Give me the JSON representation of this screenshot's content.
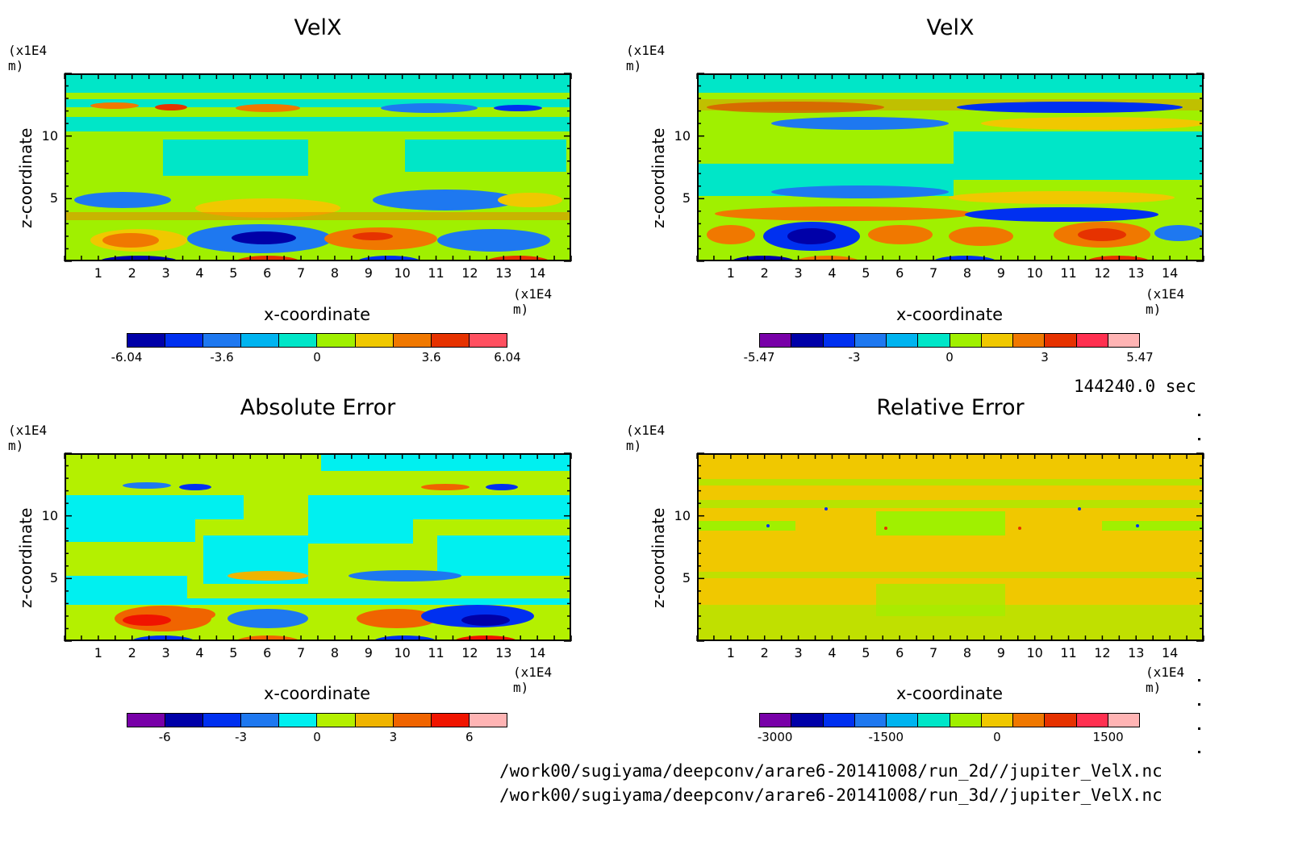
{
  "chart_data": [
    {
      "type": "heatmap",
      "title": "VelX",
      "xlabel": "x-coordinate",
      "ylabel": "z-coordinate",
      "x_unit": "(x1E4 m)",
      "y_unit": "(x1E4 m)",
      "xticks": [
        "1",
        "2",
        "3",
        "4",
        "5",
        "6",
        "7",
        "8",
        "9",
        "10",
        "11",
        "12",
        "13",
        "14"
      ],
      "yticks": [
        "5",
        "10"
      ],
      "xlim": [
        0,
        15
      ],
      "ylim": [
        0,
        15
      ],
      "colorbar": {
        "colors": [
          "#0000a8",
          "#0030f0",
          "#1e78f0",
          "#00b4f0",
          "#00e6c8",
          "#a0f000",
          "#f0c800",
          "#f07800",
          "#e63200",
          "#ff5060"
        ],
        "labels": [
          "-6.04",
          "-3.6",
          "0",
          "3.6",
          "6.04"
        ]
      }
    },
    {
      "type": "heatmap",
      "title": "VelX",
      "xlabel": "x-coordinate",
      "ylabel": "z-coordinate",
      "x_unit": "(x1E4 m)",
      "y_unit": "(x1E4 m)",
      "xticks": [
        "1",
        "2",
        "3",
        "4",
        "5",
        "6",
        "7",
        "8",
        "9",
        "10",
        "11",
        "12",
        "13",
        "14"
      ],
      "yticks": [
        "5",
        "10"
      ],
      "xlim": [
        0,
        15
      ],
      "ylim": [
        0,
        15
      ],
      "colorbar": {
        "colors": [
          "#7800a8",
          "#0000a8",
          "#0030f0",
          "#1e78f0",
          "#00b4f0",
          "#00e6c8",
          "#a0f000",
          "#f0c800",
          "#f07800",
          "#e63200",
          "#ff3050",
          "#ffb4b4"
        ],
        "labels": [
          "-5.47",
          "-3",
          "0",
          "3",
          "5.47"
        ]
      }
    },
    {
      "type": "heatmap",
      "title": "Absolute Error",
      "xlabel": "x-coordinate",
      "ylabel": "z-coordinate",
      "x_unit": "(x1E4 m)",
      "y_unit": "(x1E4 m)",
      "xticks": [
        "1",
        "2",
        "3",
        "4",
        "5",
        "6",
        "7",
        "8",
        "9",
        "10",
        "11",
        "12",
        "13",
        "14"
      ],
      "yticks": [
        "5",
        "10"
      ],
      "xlim": [
        0,
        15
      ],
      "ylim": [
        0,
        15
      ],
      "colorbar": {
        "colors": [
          "#7800a8",
          "#0000a8",
          "#0030f0",
          "#1e78f0",
          "#00f0f0",
          "#b4f000",
          "#f0b400",
          "#f06400",
          "#f01400",
          "#ffb4b4"
        ],
        "labels": [
          "-6",
          "-3",
          "0",
          "3",
          "6"
        ]
      }
    },
    {
      "type": "heatmap",
      "title": "Relative Error",
      "xlabel": "x-coordinate",
      "ylabel": "z-coordinate",
      "x_unit": "(x1E4 m)",
      "y_unit": "(x1E4 m)",
      "xticks": [
        "1",
        "2",
        "3",
        "4",
        "5",
        "6",
        "7",
        "8",
        "9",
        "10",
        "11",
        "12",
        "13",
        "14"
      ],
      "yticks": [
        "5",
        "10"
      ],
      "xlim": [
        0,
        15
      ],
      "ylim": [
        0,
        15
      ],
      "colorbar": {
        "colors": [
          "#7800a8",
          "#0000a8",
          "#0030f0",
          "#1e78f0",
          "#00b4f0",
          "#00e6c8",
          "#a0f000",
          "#f0c800",
          "#f07800",
          "#e63200",
          "#ff3050",
          "#ffb4b4"
        ],
        "labels": [
          "-3000",
          "-1500",
          "0",
          "1500"
        ]
      }
    }
  ],
  "timestamp": "144240.0 sec",
  "files": [
    "/work00/sugiyama/deepconv/arare6-20141008/run_2d//jupiter_VelX.nc",
    "/work00/sugiyama/deepconv/arare6-20141008/run_3d//jupiter_VelX.nc"
  ]
}
